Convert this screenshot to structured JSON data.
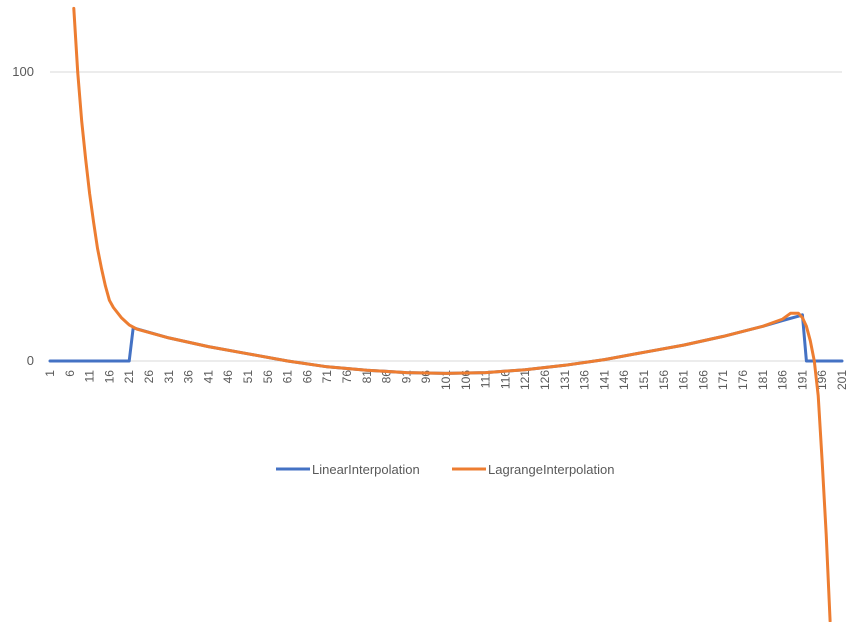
{
  "chart_data": {
    "type": "line",
    "title": "",
    "xlabel": "",
    "ylabel": "",
    "ylim": [
      -90,
      125
    ],
    "yticks": [
      0,
      100
    ],
    "x_tick_labels": [
      "1",
      "6",
      "11",
      "16",
      "21",
      "26",
      "31",
      "36",
      "41",
      "46",
      "51",
      "56",
      "61",
      "66",
      "71",
      "76",
      "81",
      "86",
      "91",
      "96",
      "101",
      "106",
      "111",
      "116",
      "121",
      "126",
      "131",
      "136",
      "141",
      "146",
      "151",
      "156",
      "161",
      "166",
      "171",
      "176",
      "181",
      "186",
      "191",
      "196",
      "201"
    ],
    "grid": "horizontal",
    "legend_position": "bottom",
    "series": [
      {
        "name": "LinearInterpolation",
        "color": "#4472C4",
        "points": [
          [
            1,
            0
          ],
          [
            21,
            0
          ],
          [
            22,
            11.5
          ],
          [
            31,
            8
          ],
          [
            41,
            5
          ],
          [
            51,
            2.5
          ],
          [
            61,
            0
          ],
          [
            71,
            -2
          ],
          [
            81,
            -3.2
          ],
          [
            91,
            -4
          ],
          [
            101,
            -4.3
          ],
          [
            111,
            -4
          ],
          [
            121,
            -3
          ],
          [
            131,
            -1.5
          ],
          [
            141,
            0.5
          ],
          [
            151,
            3
          ],
          [
            161,
            5.5
          ],
          [
            171,
            8.5
          ],
          [
            181,
            12
          ],
          [
            186,
            14
          ],
          [
            190,
            15.5
          ],
          [
            191,
            16
          ],
          [
            192,
            0
          ],
          [
            201,
            0
          ]
        ]
      },
      {
        "name": "LagrangeInterpolation",
        "color": "#ED7D31",
        "points": [
          [
            7,
            122
          ],
          [
            8,
            100
          ],
          [
            9,
            83
          ],
          [
            10,
            70
          ],
          [
            11,
            58
          ],
          [
            12,
            48
          ],
          [
            13,
            39
          ],
          [
            14,
            32
          ],
          [
            15,
            26
          ],
          [
            16,
            21
          ],
          [
            17,
            18.5
          ],
          [
            19,
            15
          ],
          [
            21,
            12.5
          ],
          [
            23,
            11
          ],
          [
            31,
            8
          ],
          [
            41,
            5
          ],
          [
            51,
            2.5
          ],
          [
            61,
            0
          ],
          [
            71,
            -2
          ],
          [
            81,
            -3.2
          ],
          [
            91,
            -4
          ],
          [
            101,
            -4.3
          ],
          [
            111,
            -4
          ],
          [
            121,
            -3
          ],
          [
            131,
            -1.5
          ],
          [
            141,
            0.5
          ],
          [
            151,
            3
          ],
          [
            161,
            5.5
          ],
          [
            171,
            8.5
          ],
          [
            181,
            12
          ],
          [
            186,
            14.5
          ],
          [
            188,
            16.5
          ],
          [
            190,
            16.5
          ],
          [
            191,
            15
          ],
          [
            192,
            12
          ],
          [
            193,
            7
          ],
          [
            194,
            0
          ],
          [
            195,
            -12
          ],
          [
            196,
            -35
          ],
          [
            197,
            -60
          ],
          [
            198,
            -90
          ]
        ]
      }
    ]
  }
}
